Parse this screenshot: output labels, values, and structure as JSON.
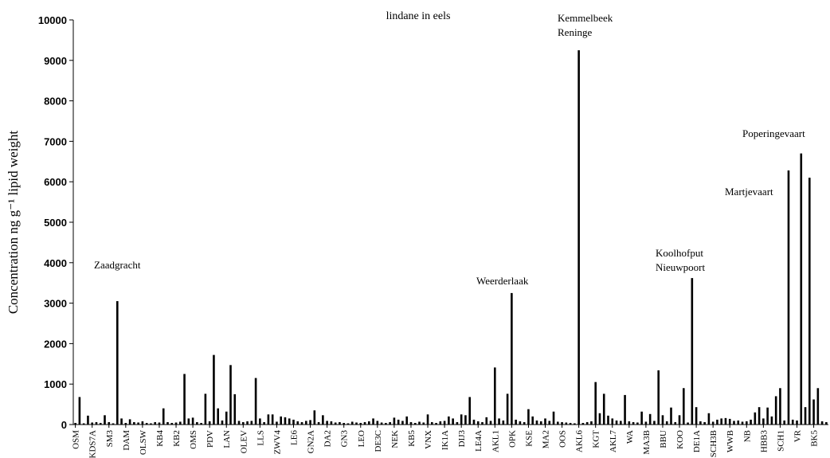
{
  "chart_data": {
    "type": "bar",
    "title": "lindane in eels",
    "ylabel": "Concentration ng g⁻¹ lipid weight",
    "categories": [
      "OSM",
      null,
      null,
      null,
      "KDS7A",
      null,
      null,
      null,
      "SM3",
      null,
      null,
      null,
      "DAM",
      null,
      null,
      null,
      "OLSW",
      null,
      null,
      null,
      "KB4",
      null,
      null,
      null,
      "KB2",
      null,
      null,
      null,
      "OMS",
      null,
      null,
      null,
      "PDV",
      null,
      null,
      null,
      "LAN",
      null,
      null,
      null,
      "OLEV",
      null,
      null,
      null,
      "LLS",
      null,
      null,
      null,
      "ZWV4",
      null,
      null,
      null,
      "LE6",
      null,
      null,
      null,
      "GN2A",
      null,
      null,
      null,
      "DA2",
      null,
      null,
      null,
      "GN3",
      null,
      null,
      null,
      "LEO",
      null,
      null,
      null,
      "DE3C",
      null,
      null,
      null,
      "NEK",
      null,
      null,
      null,
      "KB5",
      null,
      null,
      null,
      "VNX",
      null,
      null,
      null,
      "IK1A",
      null,
      null,
      null,
      "DIJ3",
      null,
      null,
      null,
      "LE4A",
      null,
      null,
      null,
      "AKL1",
      null,
      null,
      null,
      "OPK",
      null,
      null,
      null,
      "KSE",
      null,
      null,
      null,
      "MA2",
      null,
      null,
      null,
      "OOS",
      null,
      null,
      null,
      "AKL6",
      null,
      null,
      null,
      "KGT",
      null,
      null,
      null,
      "AKL7",
      null,
      null,
      null,
      "WA",
      null,
      null,
      null,
      "MA3B",
      null,
      null,
      null,
      "BBU",
      null,
      null,
      null,
      "KOO",
      null,
      null,
      null,
      "DE1A",
      null,
      null,
      null,
      "SCH3B",
      null,
      null,
      null,
      "WWB",
      null,
      null,
      null,
      "NB",
      null,
      null,
      null,
      "HBB3",
      null,
      null,
      null,
      "SCH1",
      null,
      null,
      null,
      "VR",
      null,
      null,
      null,
      "BK5",
      null,
      null,
      null
    ],
    "values": [
      40,
      680,
      30,
      220,
      50,
      60,
      40,
      230,
      60,
      30,
      3050,
      150,
      40,
      130,
      60,
      50,
      80,
      40,
      30,
      60,
      50,
      400,
      60,
      40,
      50,
      70,
      1250,
      150,
      170,
      60,
      40,
      760,
      80,
      1720,
      400,
      100,
      320,
      1470,
      750,
      90,
      60,
      80,
      90,
      1150,
      150,
      60,
      250,
      250,
      70,
      200,
      180,
      150,
      120,
      80,
      60,
      90,
      110,
      350,
      60,
      230,
      90,
      80,
      50,
      60,
      40,
      30,
      70,
      50,
      40,
      60,
      80,
      150,
      90,
      50,
      40,
      60,
      170,
      120,
      90,
      200,
      60,
      40,
      70,
      50,
      250,
      60,
      40,
      80,
      90,
      200,
      150,
      60,
      250,
      230,
      680,
      120,
      80,
      60,
      180,
      90,
      1410,
      150,
      100,
      760,
      3250,
      120,
      80,
      60,
      380,
      200,
      100,
      80,
      150,
      90,
      320,
      70,
      60,
      50,
      40,
      30,
      9250,
      40,
      60,
      80,
      1050,
      280,
      760,
      220,
      150,
      100,
      90,
      730,
      80,
      60,
      50,
      320,
      70,
      260,
      90,
      1340,
      230,
      80,
      420,
      60,
      230,
      900,
      50,
      3620,
      430,
      80,
      60,
      280,
      70,
      120,
      150,
      160,
      140,
      90,
      100,
      70,
      80,
      120,
      300,
      430,
      150,
      420,
      200,
      700,
      900,
      100,
      6280,
      120,
      100,
      6700,
      430,
      6100,
      620,
      900,
      80,
      60
    ],
    "color": "#000000",
    "ylim": [
      0,
      10000
    ],
    "yticks": [
      0,
      1000,
      2000,
      3000,
      4000,
      5000,
      6000,
      7000,
      8000,
      9000,
      10000
    ],
    "annotations": [
      [
        "Zaadgracht"
      ],
      [
        "Weerderlaak"
      ],
      [
        "Kemmelbeek",
        "Reninge"
      ],
      [
        "Koolhofput",
        "Nieuwpoort"
      ],
      [
        "Martjevaart"
      ],
      [
        "Poperingevaart"
      ]
    ]
  }
}
